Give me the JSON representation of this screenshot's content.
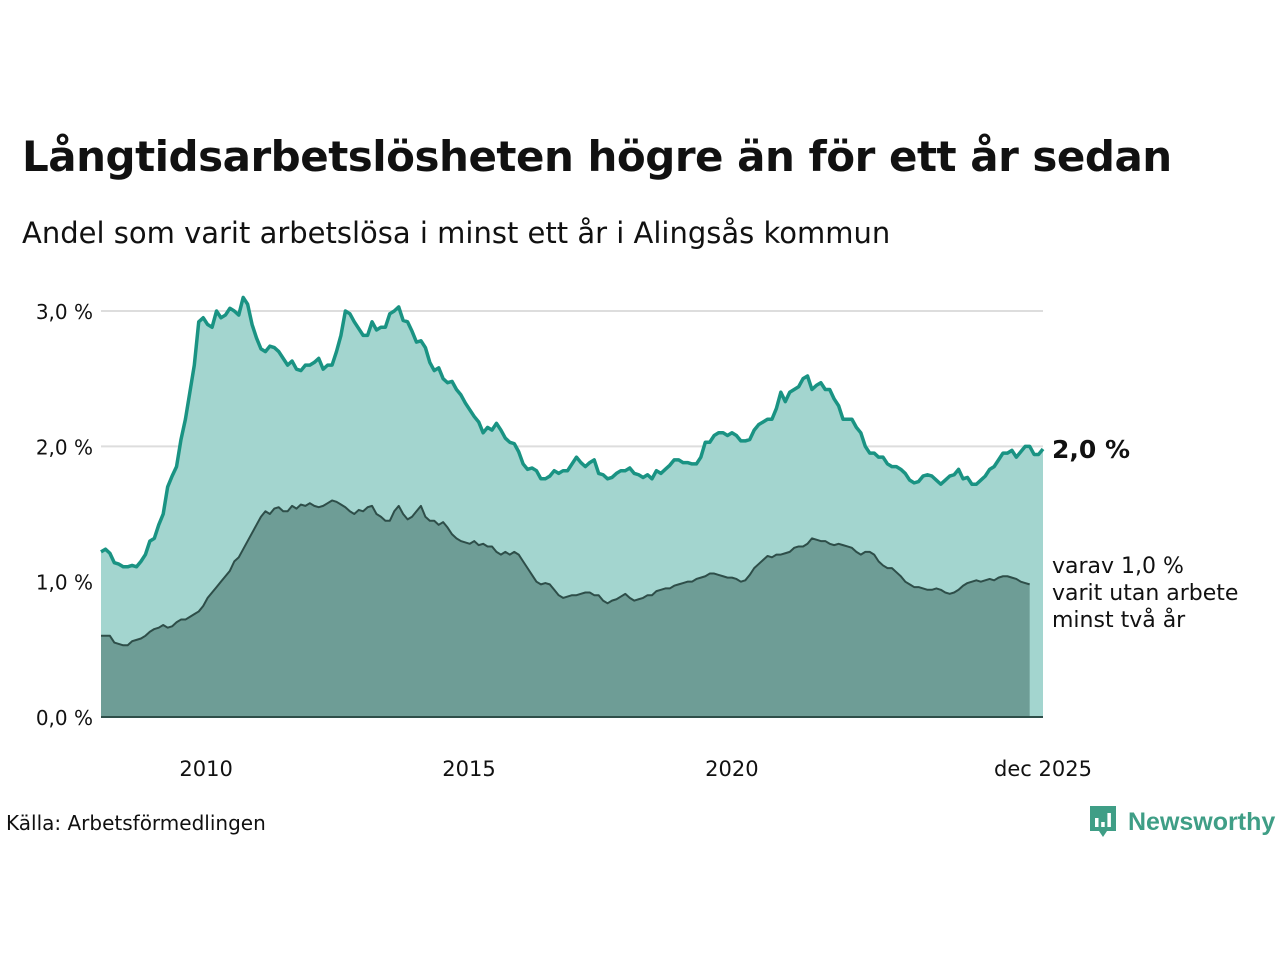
{
  "title": "Långtidsarbetslösheten högre än för ett år sedan",
  "subtitle": "Andel som varit arbetslösa i minst ett år i Alingsås kommun",
  "source": "Källa: Arbetsförmedlingen",
  "brand": "Newsworthy",
  "colors": {
    "total_line": "#1a9383",
    "total_fill": "#a3d5cf",
    "long_line": "#2e4e49",
    "long_fill": "#6e9d96",
    "grid": "#dddddd"
  },
  "annotations": {
    "latest_total": "2,0 %",
    "latest_long_lines": [
      "varav 1,0 %",
      "varit utan arbete",
      "minst två år"
    ]
  },
  "chart_data": {
    "type": "area",
    "title": "Långtidsarbetslösheten högre än för ett år sedan",
    "x_start": 2008.0,
    "x_end": 2025.917,
    "xlim": [
      2008.0,
      2025.917
    ],
    "ylim": [
      0,
      3.0
    ],
    "yticks": [
      0,
      1,
      2,
      3
    ],
    "ytick_labels": [
      "0,0 %",
      "1,0 %",
      "2,0 %",
      "3,0 %"
    ],
    "xticks": [
      2010,
      2015,
      2020,
      2025.917
    ],
    "xtick_labels": [
      "2010",
      "2015",
      "2020",
      "dec 2025"
    ],
    "grid": true,
    "series": [
      {
        "name": "Arbetslösa minst ett år",
        "values": [
          1.22,
          1.24,
          1.21,
          1.14,
          1.13,
          1.11,
          1.11,
          1.12,
          1.11,
          1.15,
          1.2,
          1.3,
          1.32,
          1.42,
          1.5,
          1.7,
          1.78,
          1.85,
          2.05,
          2.2,
          2.4,
          2.6,
          2.92,
          2.95,
          2.9,
          2.88,
          3.0,
          2.95,
          2.97,
          3.02,
          3.0,
          2.97,
          3.1,
          3.05,
          2.9,
          2.8,
          2.72,
          2.7,
          2.74,
          2.73,
          2.7,
          2.65,
          2.6,
          2.63,
          2.57,
          2.56,
          2.6,
          2.6,
          2.62,
          2.65,
          2.57,
          2.6,
          2.6,
          2.7,
          2.82,
          3.0,
          2.98,
          2.92,
          2.87,
          2.82,
          2.82,
          2.92,
          2.86,
          2.88,
          2.88,
          2.98,
          3.0,
          3.03,
          2.93,
          2.92,
          2.85,
          2.77,
          2.78,
          2.73,
          2.62,
          2.56,
          2.58,
          2.5,
          2.47,
          2.48,
          2.42,
          2.38,
          2.32,
          2.27,
          2.22,
          2.18,
          2.1,
          2.14,
          2.12,
          2.17,
          2.12,
          2.06,
          2.03,
          2.02,
          1.96,
          1.87,
          1.83,
          1.84,
          1.82,
          1.76,
          1.76,
          1.78,
          1.82,
          1.8,
          1.82,
          1.82,
          1.87,
          1.92,
          1.88,
          1.85,
          1.88,
          1.9,
          1.8,
          1.79,
          1.76,
          1.77,
          1.8,
          1.82,
          1.82,
          1.84,
          1.8,
          1.79,
          1.77,
          1.79,
          1.76,
          1.82,
          1.8,
          1.83,
          1.86,
          1.9,
          1.9,
          1.88,
          1.88,
          1.87,
          1.87,
          1.92,
          2.03,
          2.03,
          2.08,
          2.1,
          2.1,
          2.08,
          2.1,
          2.08,
          2.04,
          2.04,
          2.05,
          2.12,
          2.16,
          2.18,
          2.2,
          2.2,
          2.28,
          2.4,
          2.33,
          2.4,
          2.42,
          2.44,
          2.5,
          2.52,
          2.42,
          2.45,
          2.47,
          2.42,
          2.42,
          2.35,
          2.3,
          2.2,
          2.2,
          2.2,
          2.14,
          2.1,
          2.0,
          1.95,
          1.95,
          1.92,
          1.92,
          1.87,
          1.85,
          1.85,
          1.83,
          1.8,
          1.75,
          1.73,
          1.74,
          1.78,
          1.79,
          1.78,
          1.75,
          1.72,
          1.75,
          1.78,
          1.79,
          1.83,
          1.76,
          1.77,
          1.72,
          1.72,
          1.75,
          1.78,
          1.83,
          1.85,
          1.9,
          1.95,
          1.95,
          1.97,
          1.92,
          1.96,
          2.0,
          2.0,
          1.94,
          1.94,
          1.98
        ]
      },
      {
        "name": "varav minst två år",
        "values": [
          0.6,
          0.6,
          0.6,
          0.55,
          0.54,
          0.53,
          0.53,
          0.56,
          0.57,
          0.58,
          0.6,
          0.63,
          0.65,
          0.66,
          0.68,
          0.66,
          0.67,
          0.7,
          0.72,
          0.72,
          0.74,
          0.76,
          0.78,
          0.82,
          0.88,
          0.92,
          0.96,
          1.0,
          1.04,
          1.08,
          1.15,
          1.18,
          1.24,
          1.3,
          1.36,
          1.42,
          1.48,
          1.52,
          1.5,
          1.54,
          1.55,
          1.52,
          1.52,
          1.56,
          1.54,
          1.57,
          1.56,
          1.58,
          1.56,
          1.55,
          1.56,
          1.58,
          1.6,
          1.59,
          1.57,
          1.55,
          1.52,
          1.5,
          1.53,
          1.52,
          1.55,
          1.56,
          1.5,
          1.48,
          1.45,
          1.45,
          1.52,
          1.56,
          1.5,
          1.46,
          1.48,
          1.52,
          1.56,
          1.48,
          1.45,
          1.45,
          1.42,
          1.44,
          1.4,
          1.35,
          1.32,
          1.3,
          1.29,
          1.28,
          1.3,
          1.27,
          1.28,
          1.26,
          1.26,
          1.22,
          1.2,
          1.22,
          1.2,
          1.22,
          1.2,
          1.15,
          1.1,
          1.05,
          1.0,
          0.98,
          0.99,
          0.98,
          0.94,
          0.9,
          0.88,
          0.89,
          0.9,
          0.9,
          0.91,
          0.92,
          0.92,
          0.9,
          0.9,
          0.86,
          0.84,
          0.86,
          0.87,
          0.89,
          0.91,
          0.88,
          0.86,
          0.87,
          0.88,
          0.9,
          0.9,
          0.93,
          0.94,
          0.95,
          0.95,
          0.97,
          0.98,
          0.99,
          1.0,
          1.0,
          1.02,
          1.03,
          1.04,
          1.06,
          1.06,
          1.05,
          1.04,
          1.03,
          1.03,
          1.02,
          1.0,
          1.01,
          1.05,
          1.1,
          1.13,
          1.16,
          1.19,
          1.18,
          1.2,
          1.2,
          1.21,
          1.22,
          1.25,
          1.26,
          1.26,
          1.28,
          1.32,
          1.31,
          1.3,
          1.3,
          1.28,
          1.27,
          1.28,
          1.27,
          1.26,
          1.25,
          1.22,
          1.2,
          1.22,
          1.22,
          1.2,
          1.15,
          1.12,
          1.1,
          1.1,
          1.07,
          1.04,
          1.0,
          0.98,
          0.96,
          0.96,
          0.95,
          0.94,
          0.94,
          0.95,
          0.94,
          0.92,
          0.91,
          0.92,
          0.94,
          0.97,
          0.99,
          1.0,
          1.01,
          1.0,
          1.01,
          1.02,
          1.01,
          1.03,
          1.04,
          1.04,
          1.03,
          1.02,
          1.0,
          0.99,
          0.98
        ]
      }
    ]
  }
}
